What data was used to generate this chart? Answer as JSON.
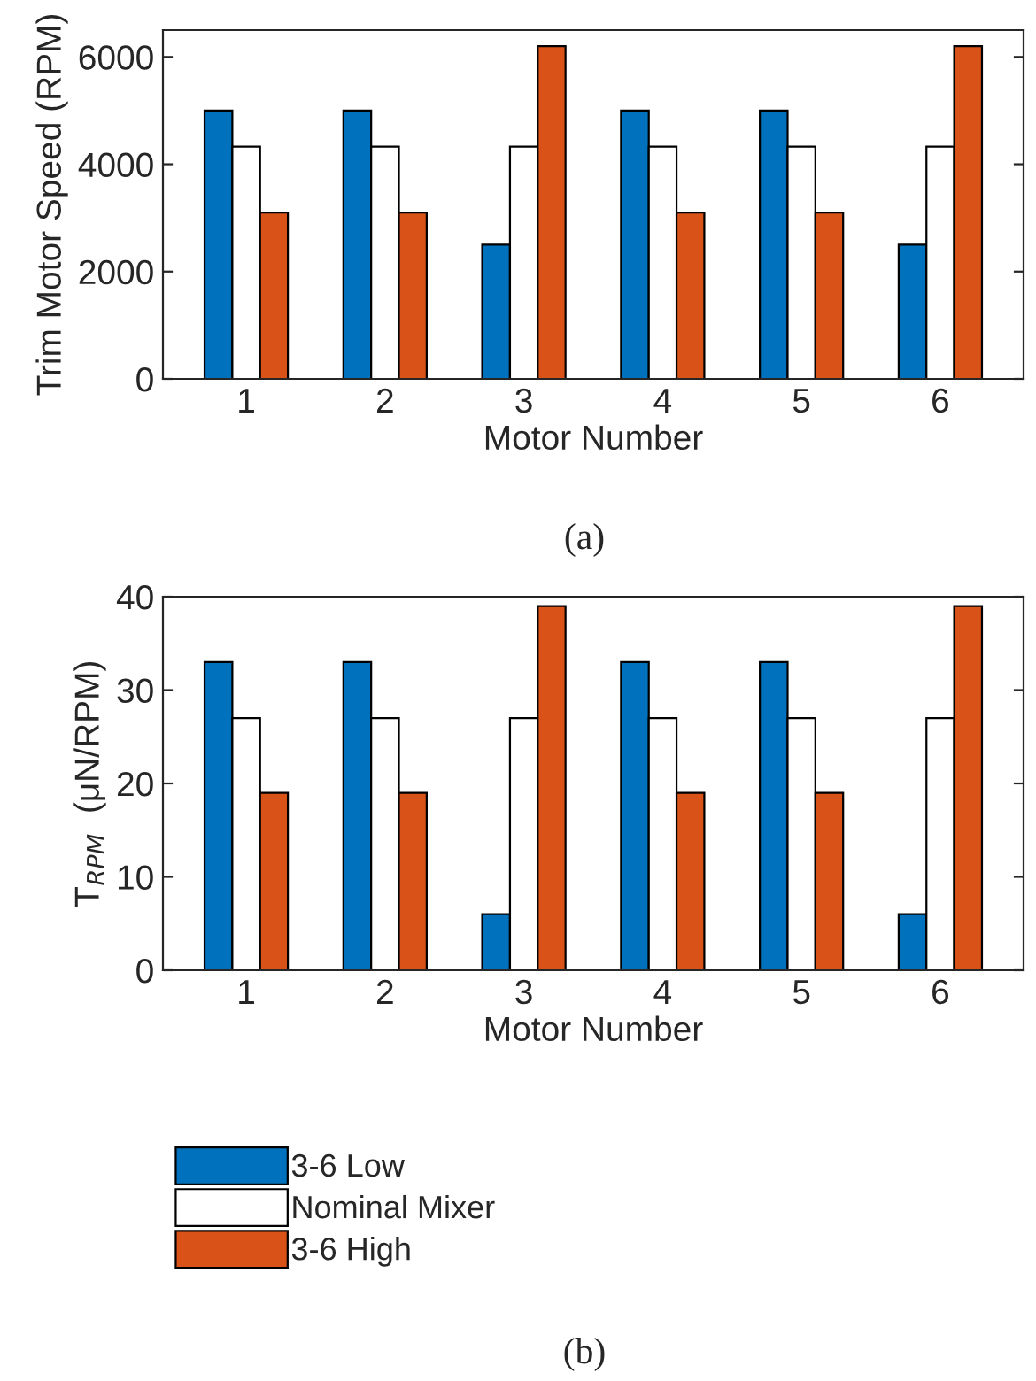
{
  "chart_data": [
    {
      "type": "bar",
      "categories": [
        "1",
        "2",
        "3",
        "4",
        "5",
        "6"
      ],
      "xlabel": "Motor Number",
      "ylabel": "Trim Motor Speed (RPM)",
      "ylim": [
        0,
        6500
      ],
      "yticks": [
        0,
        2000,
        4000,
        6000
      ],
      "grid": false,
      "legend": false,
      "annotations": [
        "(a)"
      ],
      "series": [
        {
          "color": "#0072bd",
          "values": [
            5000,
            5000,
            2500,
            5000,
            5000,
            2500
          ]
        },
        {
          "color": "#ffffff",
          "values": [
            4330,
            4330,
            4330,
            4330,
            4330,
            4330
          ]
        },
        {
          "color": "#d95319",
          "values": [
            3100,
            3100,
            6200,
            3100,
            3100,
            6200
          ]
        }
      ]
    },
    {
      "type": "bar",
      "categories": [
        "1",
        "2",
        "3",
        "4",
        "5",
        "6"
      ],
      "xlabel": "Motor Number",
      "ylabel": "T$_{RPM}$  (μN/RPM)",
      "ylim": [
        0,
        40
      ],
      "yticks": [
        0,
        10,
        20,
        30,
        40
      ],
      "grid": false,
      "legend": "bottom",
      "annotations": [
        "(b)"
      ],
      "series": [
        {
          "name": "3-6 Low",
          "color": "#0072bd",
          "values": [
            33,
            33,
            6,
            33,
            33,
            6
          ]
        },
        {
          "name": "Nominal Mixer",
          "color": "#ffffff",
          "values": [
            27,
            27,
            27,
            27,
            27,
            27
          ]
        },
        {
          "name": "3-6 High",
          "color": "#d95319",
          "values": [
            19,
            19,
            39,
            19,
            19,
            39
          ]
        }
      ]
    }
  ]
}
